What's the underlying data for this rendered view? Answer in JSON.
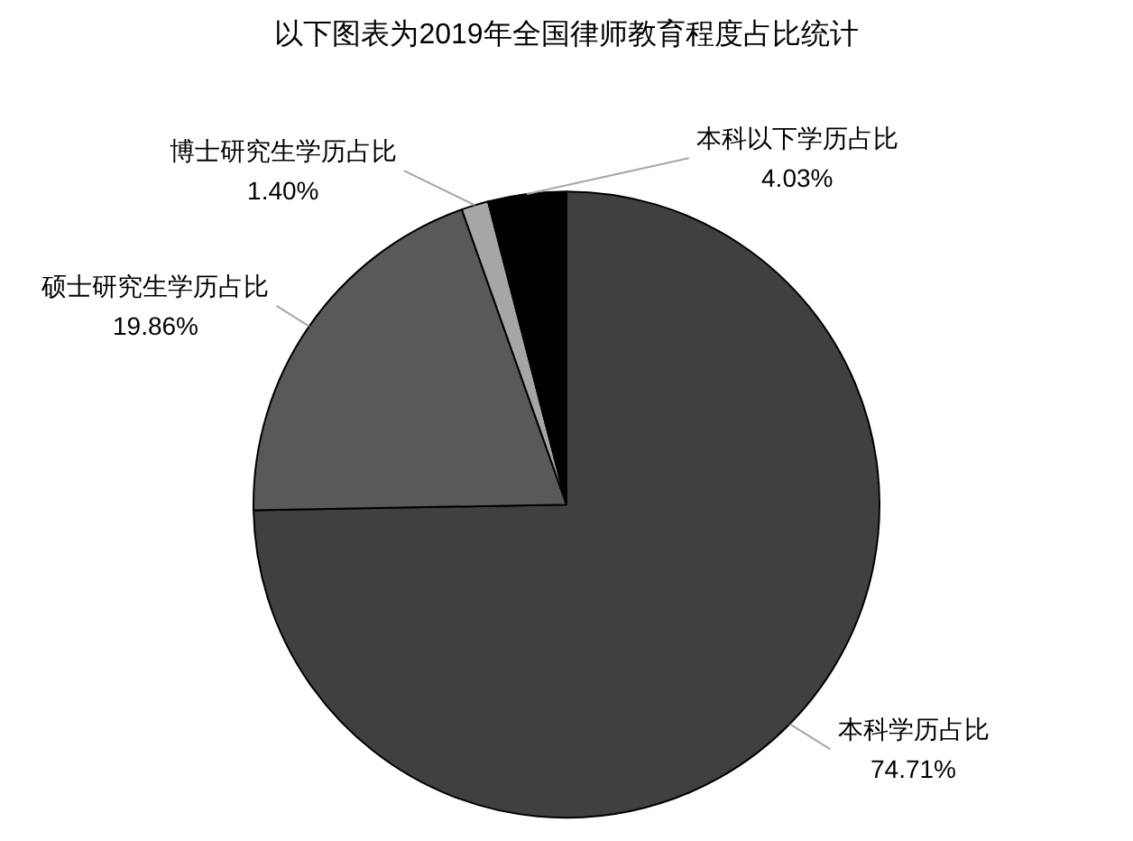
{
  "chart_data": {
    "type": "pie",
    "title": "以下图表为2019年全国律师教育程度占比统计",
    "categories": [
      "本科学历占比",
      "硕士研究生学历占比",
      "博士研究生学历占比",
      "本科以下学历占比"
    ],
    "values": [
      74.71,
      19.86,
      1.4,
      4.03
    ],
    "value_labels": [
      "74.71%",
      "19.86%",
      "1.40%",
      "4.03%"
    ],
    "colors": [
      "#404040",
      "#595959",
      "#a6a6a6",
      "#000000"
    ],
    "legend": false
  }
}
